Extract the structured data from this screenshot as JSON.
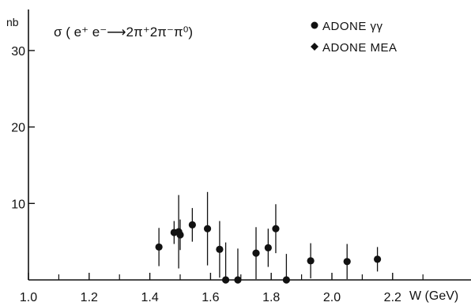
{
  "chart_data": {
    "type": "scatter",
    "title": "σ ( e⁺ e⁻⟶2π⁺2π⁻π⁰)",
    "xlabel": "W (GeV)",
    "ylabel": "nb",
    "xlim": [
      1.0,
      2.4
    ],
    "ylim": [
      0,
      33
    ],
    "x_ticks": [
      1.0,
      1.2,
      1.4,
      1.6,
      1.8,
      2.0,
      2.2
    ],
    "x_tick_labels": [
      "1.0",
      "1.2",
      "1.4",
      "1.6",
      "1.8",
      "2.0",
      "2.2"
    ],
    "x_minor_ticks": [
      1.1,
      1.3,
      1.5,
      1.7,
      1.9,
      2.1,
      2.3
    ],
    "y_ticks": [
      10,
      20,
      30
    ],
    "y_tick_labels": [
      "10",
      "20",
      "30"
    ],
    "grid": false,
    "legend_position": "top-right",
    "series": [
      {
        "name": "ADONE γγ",
        "marker": "circle",
        "points": [
          {
            "x": 1.43,
            "y": 4.3,
            "err": 2.5
          },
          {
            "x": 1.48,
            "y": 6.2,
            "err": 1.5
          },
          {
            "x": 1.495,
            "y": 6.3,
            "err": 4.8
          },
          {
            "x": 1.5,
            "y": 5.9,
            "err": 2.0
          },
          {
            "x": 1.54,
            "y": 7.2,
            "err": 2.2
          },
          {
            "x": 1.59,
            "y": 6.7,
            "err": 4.8
          },
          {
            "x": 1.63,
            "y": 4.0,
            "err": 3.7
          },
          {
            "x": 1.65,
            "y": 0.0,
            "err": 4.9
          },
          {
            "x": 1.69,
            "y": 0.0,
            "err": 4.1
          },
          {
            "x": 1.75,
            "y": 3.5,
            "err": 3.4
          },
          {
            "x": 1.79,
            "y": 4.2,
            "err": 2.5
          },
          {
            "x": 1.815,
            "y": 6.7,
            "err": 3.2
          },
          {
            "x": 1.85,
            "y": 0.0,
            "err": 3.4
          },
          {
            "x": 1.93,
            "y": 2.5,
            "err": 2.3
          },
          {
            "x": 2.05,
            "y": 2.4,
            "err": 2.3
          },
          {
            "x": 2.15,
            "y": 2.7,
            "err": 1.6
          }
        ]
      },
      {
        "name": "ADONE MEA",
        "marker": "diamond",
        "points": []
      }
    ],
    "annotations": [
      "nb"
    ]
  }
}
